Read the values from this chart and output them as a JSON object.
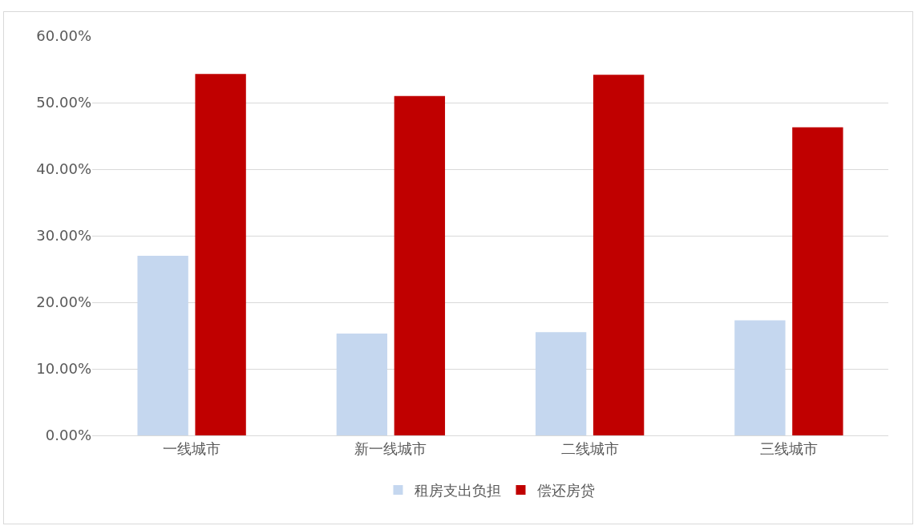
{
  "chart_data": {
    "type": "bar",
    "categories": [
      "一线城市",
      "新一线城市",
      "二线城市",
      "三线城市"
    ],
    "series": [
      {
        "name": "租房支出负担",
        "color": "#c5d7ef",
        "values": [
          27.0,
          15.3,
          15.5,
          17.3
        ]
      },
      {
        "name": "偿还房贷",
        "color": "#c00000",
        "values": [
          54.3,
          51.0,
          54.2,
          46.3
        ]
      }
    ],
    "ylim": [
      0,
      60
    ],
    "yticks": [
      {
        "value": 0,
        "label": "0.00%"
      },
      {
        "value": 10,
        "label": "10.00%"
      },
      {
        "value": 20,
        "label": "20.00%"
      },
      {
        "value": 30,
        "label": "30.00%"
      },
      {
        "value": 40,
        "label": "40.00%"
      },
      {
        "value": 50,
        "label": "50.00%"
      },
      {
        "value": 60,
        "label": "60.00%"
      }
    ],
    "grid": "y",
    "legend": "bottom"
  }
}
